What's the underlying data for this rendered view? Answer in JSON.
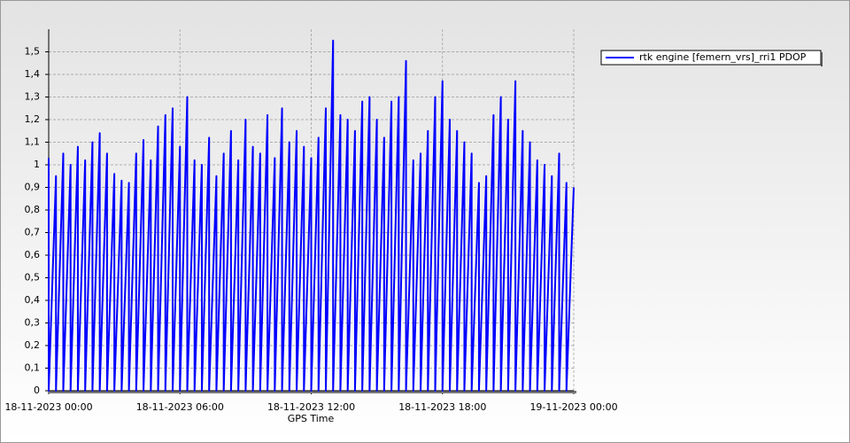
{
  "chart_data": {
    "type": "line",
    "x_label": "GPS Time",
    "xlim": [
      "18-11-2023 00:00",
      "19-11-2023 00:00"
    ],
    "xticks": [
      "18-11-2023 00:00",
      "18-11-2023 06:00",
      "18-11-2023 12:00",
      "18-11-2023 18:00",
      "19-11-2023 00:00"
    ],
    "ylim": [
      0,
      1.6
    ],
    "yticks": [
      0,
      {
        "value": 0.1,
        "label": "0,1"
      },
      {
        "value": 0.2,
        "label": "0,2"
      },
      {
        "value": 0.3,
        "label": "0,3"
      },
      {
        "value": 0.4,
        "label": "0,4"
      },
      {
        "value": 0.5,
        "label": "0,5"
      },
      {
        "value": 0.6,
        "label": "0,6"
      },
      {
        "value": 0.7,
        "label": "0,7"
      },
      {
        "value": 0.8,
        "label": "0,8"
      },
      {
        "value": 0.9,
        "label": "0,9"
      },
      1,
      {
        "value": 1.1,
        "label": "1,1"
      },
      {
        "value": 1.2,
        "label": "1,2"
      },
      {
        "value": 1.3,
        "label": "1,3"
      },
      {
        "value": 1.4,
        "label": "1,4"
      },
      {
        "value": 1.5,
        "label": "1,5"
      }
    ],
    "grid": true,
    "legend": "top-right",
    "x": [
      "18-11-2023 00:00",
      "18-11-2023 00:00",
      "18-11-2023 00:20",
      "18-11-2023 00:20",
      "18-11-2023 00:40",
      "18-11-2023 00:40",
      "18-11-2023 01:00",
      "18-11-2023 01:00",
      "18-11-2023 01:20",
      "18-11-2023 01:20",
      "18-11-2023 01:40",
      "18-11-2023 01:40",
      "18-11-2023 02:00",
      "18-11-2023 02:00",
      "18-11-2023 02:20",
      "18-11-2023 02:20",
      "18-11-2023 02:40",
      "18-11-2023 02:40",
      "18-11-2023 03:00",
      "18-11-2023 03:00",
      "18-11-2023 03:20",
      "18-11-2023 03:20",
      "18-11-2023 03:40",
      "18-11-2023 03:40",
      "18-11-2023 04:00",
      "18-11-2023 04:00",
      "18-11-2023 04:20",
      "18-11-2023 04:20",
      "18-11-2023 04:40",
      "18-11-2023 04:40",
      "18-11-2023 05:00",
      "18-11-2023 05:00",
      "18-11-2023 05:20",
      "18-11-2023 05:20",
      "18-11-2023 05:40",
      "18-11-2023 05:40",
      "18-11-2023 06:00",
      "18-11-2023 06:00",
      "18-11-2023 06:20",
      "18-11-2023 06:20",
      "18-11-2023 06:40",
      "18-11-2023 06:40",
      "18-11-2023 07:00",
      "18-11-2023 07:00",
      "18-11-2023 07:20",
      "18-11-2023 07:20",
      "18-11-2023 07:40",
      "18-11-2023 07:40",
      "18-11-2023 08:00",
      "18-11-2023 08:00",
      "18-11-2023 08:20",
      "18-11-2023 08:20",
      "18-11-2023 08:40",
      "18-11-2023 08:40",
      "18-11-2023 09:00",
      "18-11-2023 09:00",
      "18-11-2023 09:20",
      "18-11-2023 09:20",
      "18-11-2023 09:40",
      "18-11-2023 09:40",
      "18-11-2023 10:00",
      "18-11-2023 10:00",
      "18-11-2023 10:20",
      "18-11-2023 10:20",
      "18-11-2023 10:40",
      "18-11-2023 10:40",
      "18-11-2023 11:00",
      "18-11-2023 11:00",
      "18-11-2023 11:20",
      "18-11-2023 11:20",
      "18-11-2023 11:40",
      "18-11-2023 11:40",
      "18-11-2023 12:00",
      "18-11-2023 12:00",
      "18-11-2023 12:20",
      "18-11-2023 12:20",
      "18-11-2023 12:40",
      "18-11-2023 12:40",
      "18-11-2023 13:00",
      "18-11-2023 13:00",
      "18-11-2023 13:20",
      "18-11-2023 13:20",
      "18-11-2023 13:40",
      "18-11-2023 13:40",
      "18-11-2023 14:00",
      "18-11-2023 14:00",
      "18-11-2023 14:20",
      "18-11-2023 14:20",
      "18-11-2023 14:40",
      "18-11-2023 14:40",
      "18-11-2023 15:00",
      "18-11-2023 15:00",
      "18-11-2023 15:20",
      "18-11-2023 15:20",
      "18-11-2023 15:40",
      "18-11-2023 15:40",
      "18-11-2023 16:00",
      "18-11-2023 16:00",
      "18-11-2023 16:20",
      "18-11-2023 16:20",
      "18-11-2023 16:40",
      "18-11-2023 16:40",
      "18-11-2023 17:00",
      "18-11-2023 17:00",
      "18-11-2023 17:20",
      "18-11-2023 17:20",
      "18-11-2023 17:40",
      "18-11-2023 17:40",
      "18-11-2023 18:00",
      "18-11-2023 18:00",
      "18-11-2023 18:20",
      "18-11-2023 18:20",
      "18-11-2023 18:40",
      "18-11-2023 18:40",
      "18-11-2023 19:00",
      "18-11-2023 19:00",
      "18-11-2023 19:20",
      "18-11-2023 19:20",
      "18-11-2023 19:40",
      "18-11-2023 19:40",
      "18-11-2023 20:00",
      "18-11-2023 20:00",
      "18-11-2023 20:20",
      "18-11-2023 20:20",
      "18-11-2023 20:40",
      "18-11-2023 20:40",
      "18-11-2023 21:00",
      "18-11-2023 21:00",
      "18-11-2023 21:20",
      "18-11-2023 21:20",
      "18-11-2023 21:40",
      "18-11-2023 21:40",
      "18-11-2023 22:00",
      "18-11-2023 22:00",
      "18-11-2023 22:20",
      "18-11-2023 22:20",
      "18-11-2023 22:40",
      "18-11-2023 22:40",
      "18-11-2023 23:00",
      "18-11-2023 23:00",
      "18-11-2023 23:20",
      "18-11-2023 23:20",
      "18-11-2023 23:40",
      "18-11-2023 23:40",
      "19-11-2023 00:00"
    ],
    "series": [
      {
        "name": "rtk engine [femern_vrs]_rri1 PDOP",
        "color": "#0000ff",
        "values": [
          1.03,
          0,
          0.95,
          0,
          1.05,
          0,
          1.0,
          0,
          1.08,
          0,
          1.02,
          0,
          1.1,
          0,
          1.14,
          0,
          1.05,
          0,
          0.96,
          0,
          0.93,
          0,
          0.92,
          0,
          1.05,
          0,
          1.11,
          0,
          1.02,
          0,
          1.17,
          0,
          1.22,
          0,
          1.25,
          0,
          1.08,
          0,
          1.3,
          0,
          1.02,
          0,
          1.0,
          0,
          1.12,
          0,
          0.95,
          0,
          1.05,
          0,
          1.15,
          0,
          1.02,
          0,
          1.2,
          0,
          1.08,
          0,
          1.05,
          0,
          1.22,
          0,
          1.03,
          0,
          1.25,
          0,
          1.1,
          0,
          1.15,
          0,
          1.08,
          0,
          1.03,
          0,
          1.12,
          0,
          1.25,
          0,
          1.55,
          0,
          1.22,
          0,
          1.2,
          0,
          1.15,
          0,
          1.28,
          0,
          1.3,
          0,
          1.2,
          0,
          1.12,
          0,
          1.28,
          0,
          1.3,
          0,
          1.46,
          0,
          1.02,
          0,
          1.05,
          0,
          1.15,
          0,
          1.3,
          0,
          1.37,
          0,
          1.2,
          0,
          1.15,
          0,
          1.1,
          0,
          1.05,
          0,
          0.92,
          0,
          0.95,
          0,
          1.22,
          0,
          1.3,
          0,
          1.2,
          0,
          1.37,
          0,
          1.15,
          0,
          1.1,
          0,
          1.02,
          0,
          1.0,
          0,
          0.95,
          0,
          1.05,
          0,
          0.92,
          0,
          0.9
        ]
      }
    ]
  }
}
